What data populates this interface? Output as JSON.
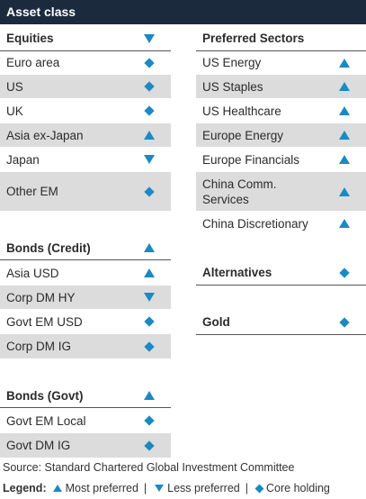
{
  "header": {
    "title": "Asset class"
  },
  "equities": {
    "heading": "Equities",
    "heading_indicator": "down",
    "rows": [
      {
        "label": "Euro area",
        "indicator": "diamond"
      },
      {
        "label": "US",
        "indicator": "diamond"
      },
      {
        "label": "UK",
        "indicator": "diamond"
      },
      {
        "label": "Asia ex-Japan",
        "indicator": "up"
      },
      {
        "label": "Japan",
        "indicator": "down"
      },
      {
        "label": "Other EM",
        "indicator": "diamond"
      }
    ]
  },
  "bonds_credit": {
    "heading": "Bonds (Credit)",
    "heading_indicator": "up",
    "rows": [
      {
        "label": "Asia USD",
        "indicator": "up"
      },
      {
        "label": "Corp DM HY",
        "indicator": "down"
      },
      {
        "label": "Govt EM USD",
        "indicator": "diamond"
      },
      {
        "label": "Corp DM IG",
        "indicator": "diamond"
      }
    ]
  },
  "bonds_govt": {
    "heading": "Bonds (Govt)",
    "heading_indicator": "up",
    "rows": [
      {
        "label": "Govt EM Local",
        "indicator": "diamond"
      },
      {
        "label": "Govt DM IG",
        "indicator": "diamond"
      }
    ]
  },
  "preferred_sectors": {
    "heading": "Preferred Sectors",
    "rows": [
      {
        "label": "US Energy",
        "indicator": "up"
      },
      {
        "label": "US Staples",
        "indicator": "up"
      },
      {
        "label": "US Healthcare",
        "indicator": "up"
      },
      {
        "label": "Europe Energy",
        "indicator": "up"
      },
      {
        "label": "Europe Financials",
        "indicator": "up"
      },
      {
        "label_line1": "China Comm.",
        "label_line2": "Services",
        "indicator": "up"
      },
      {
        "label": "China Discretionary",
        "indicator": "up"
      }
    ]
  },
  "alternatives": {
    "heading": "Alternatives",
    "indicator": "diamond"
  },
  "gold": {
    "heading": "Gold",
    "indicator": "diamond"
  },
  "source": "Source: Standard Chartered Global Investment Committee",
  "legend": {
    "title": "Legend:",
    "most_preferred": "Most preferred",
    "separator": "|",
    "less_preferred": "Less preferred",
    "core_holding": "Core holding"
  },
  "colors": {
    "header_bg": "#1b2a3d",
    "accent": "#1a8ac4",
    "shade": "#dcdcdc"
  }
}
